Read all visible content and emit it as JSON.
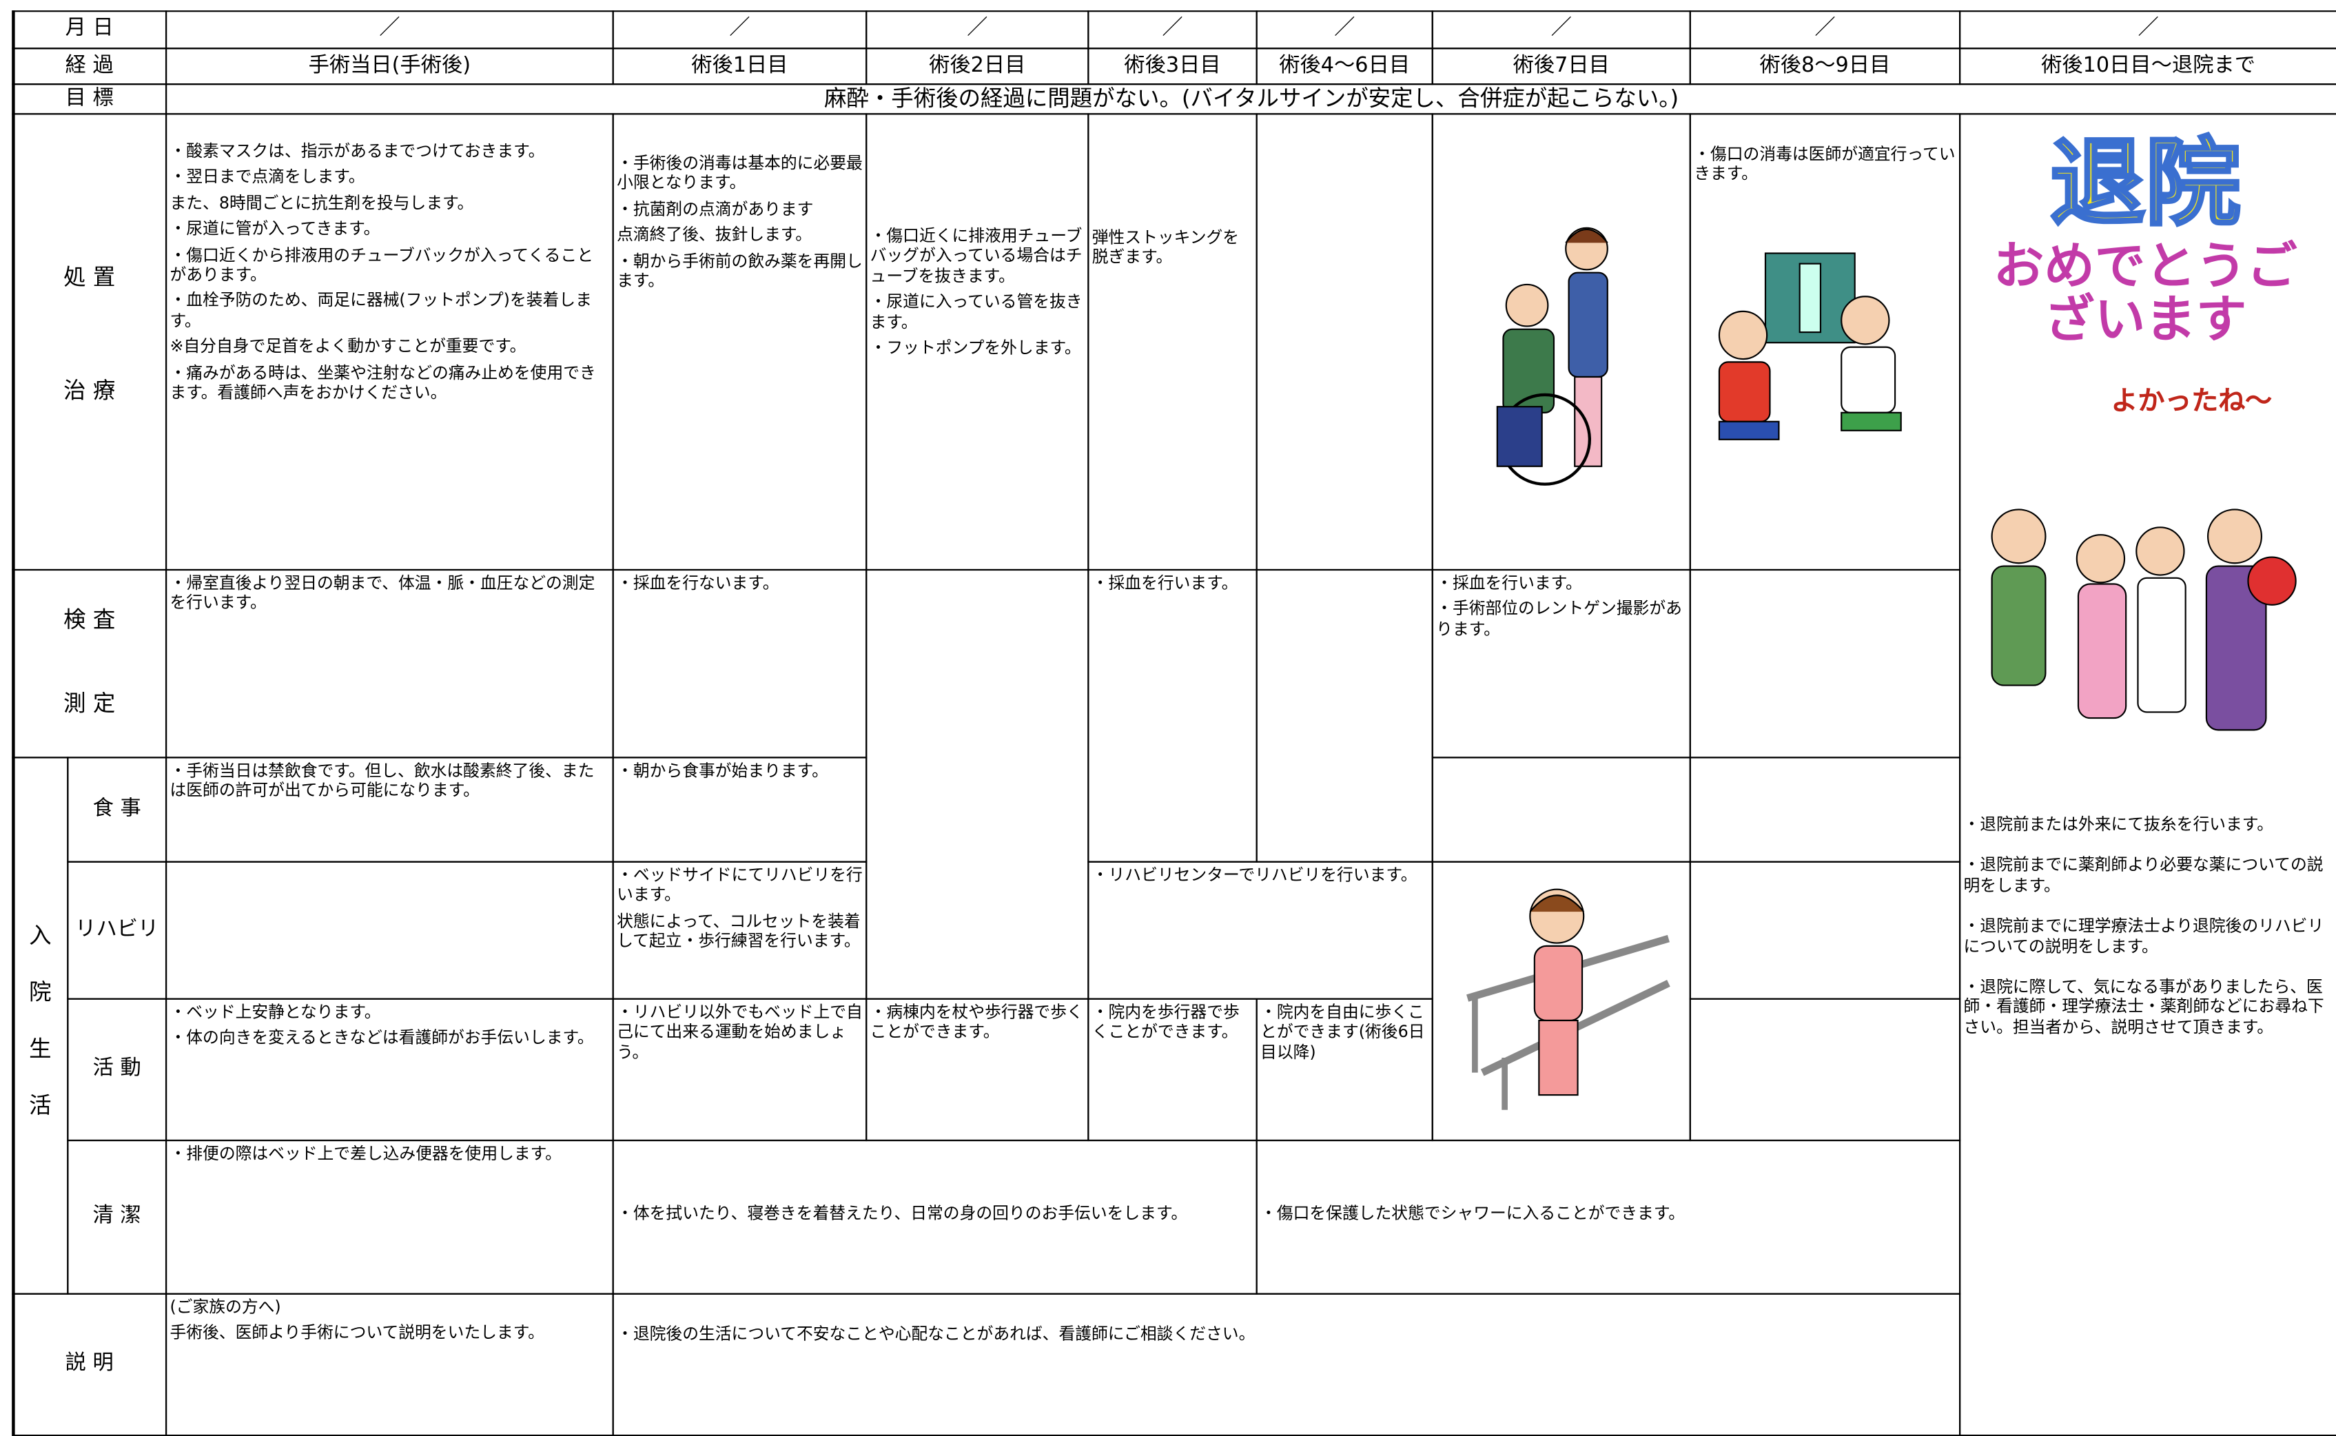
{
  "header": {
    "date_label": "月 日",
    "dates": [
      "／",
      "／",
      "／",
      "／",
      "／",
      "／",
      "／",
      "／"
    ],
    "course_label": "経 過",
    "course": [
      "手術当日(手術後)",
      "術後1日目",
      "術後2日目",
      "術後3日目",
      "術後4～6日目",
      "術後7日目",
      "術後8～9日目",
      "術後10日目～退院まで"
    ],
    "goal_label": "目 標",
    "goal": "麻酔・手術後の経過に問題がない。(バイタルサインが安定し、合併症が起こらない。)"
  },
  "treatment": {
    "label": [
      "処 置",
      "治 療"
    ],
    "day0": [
      "・酸素マスクは、指示があるまでつけておきます。",
      "・翌日まで点滴をします。",
      "また、8時間ごとに抗生剤を投与します。",
      "・尿道に管が入ってきます。",
      "・傷口近くから排液用のチューブバックが入ってくることがあります。",
      "・血栓予防のため、両足に器械(フットポンプ)を装着します。",
      "※自分自身で足首をよく動かすことが重要です。",
      "・痛みがある時は、坐薬や注射などの痛み止めを使用できます。看護師へ声をおかけください。"
    ],
    "day1": [
      "・手術後の消毒は基本的に必要最小限となります。",
      "・抗菌剤の点滴があります",
      "点滴終了後、抜針します。",
      "・朝から手術前の飲み薬を再開します。"
    ],
    "day2": [
      "・傷口近くに排液用チューブバッグが入っている場合はチューブを抜きます。",
      "・尿道に入っている管を抜きます。",
      "・フットポンプを外します。"
    ],
    "day3": [
      "弾性ストッキングを脱ぎます。"
    ],
    "day8": [
      "・傷口の消毒は医師が適宜行っていきます。"
    ]
  },
  "exam": {
    "label": [
      "検 査",
      "測 定"
    ],
    "day0": [
      "・帰室直後より翌日の朝まで、体温・脈・血圧などの測定を行います。"
    ],
    "day1": [
      "・採血を行ないます。"
    ],
    "day3": [
      "・採血を行います。"
    ],
    "day7": [
      "・採血を行います。",
      "・手術部位のレントゲン撮影があります。"
    ]
  },
  "stay": {
    "label": [
      "入",
      "院",
      "生",
      "活"
    ],
    "meal": {
      "label": "食 事",
      "day0": [
        "・手術当日は禁飲食です。但し、飲水は酸素終了後、または医師の許可が出てから可能になります。"
      ],
      "day1": [
        "・朝から食事が始まります。"
      ]
    },
    "rehab": {
      "label": "リハビリ",
      "day1": [
        "・ベッドサイドにてリハビリを行います。",
        "状態によって、コルセットを装着して起立・歩行練習を行います。"
      ],
      "day3": [
        "・リハビリセンターでリハビリを行います。"
      ]
    },
    "activity": {
      "label": "活 動",
      "day0": [
        "・ベッド上安静となります。",
        "・体の向きを変えるときなどは看護師がお手伝いします。"
      ],
      "day1": [
        "・リハビリ以外でもベッド上で自己にて出来る運動を始めましょう。"
      ],
      "day2": [
        "・病棟内を杖や歩行器で歩くことができます。"
      ],
      "day3": [
        "・院内を歩行器で歩くことができます。"
      ],
      "day4": [
        "・院内を自由に歩くことができます(術後6日目以降)"
      ]
    },
    "hygiene": {
      "label": "清 潔",
      "day0": [
        "・排便の際はベッド上で差し込み便器を使用します。"
      ],
      "day1": [
        "・体を拭いたり、寝巻きを着替えたり、日常の身の回りのお手伝いをします。"
      ],
      "day4": [
        "・傷口を保護した状態でシャワーに入ることができます。"
      ]
    }
  },
  "explanation": {
    "label": "説 明",
    "day0": [
      "(ご家族の方へ)",
      "手術後、医師より手術について説明をいたします。"
    ],
    "day1": [
      "・退院後の生活について不安なことや心配なことがあれば、看護師にご相談ください。"
    ]
  },
  "discharge": {
    "title": "退院",
    "greeting": "おめでとうございます",
    "bubble": "よかったね～",
    "notes": [
      "・退院前または外来にて抜糸を行います。",
      "・退院前までに薬剤師より必要な薬についての説明をします。",
      "・退院前までに理学療法士より退院後のリハビリについての説明をします。",
      "・退院に際して、気になる事がありましたら、医師・看護師・理学療法士・薬剤師などにお尋ね下さい。担当者から、説明させて頂きます。"
    ]
  }
}
